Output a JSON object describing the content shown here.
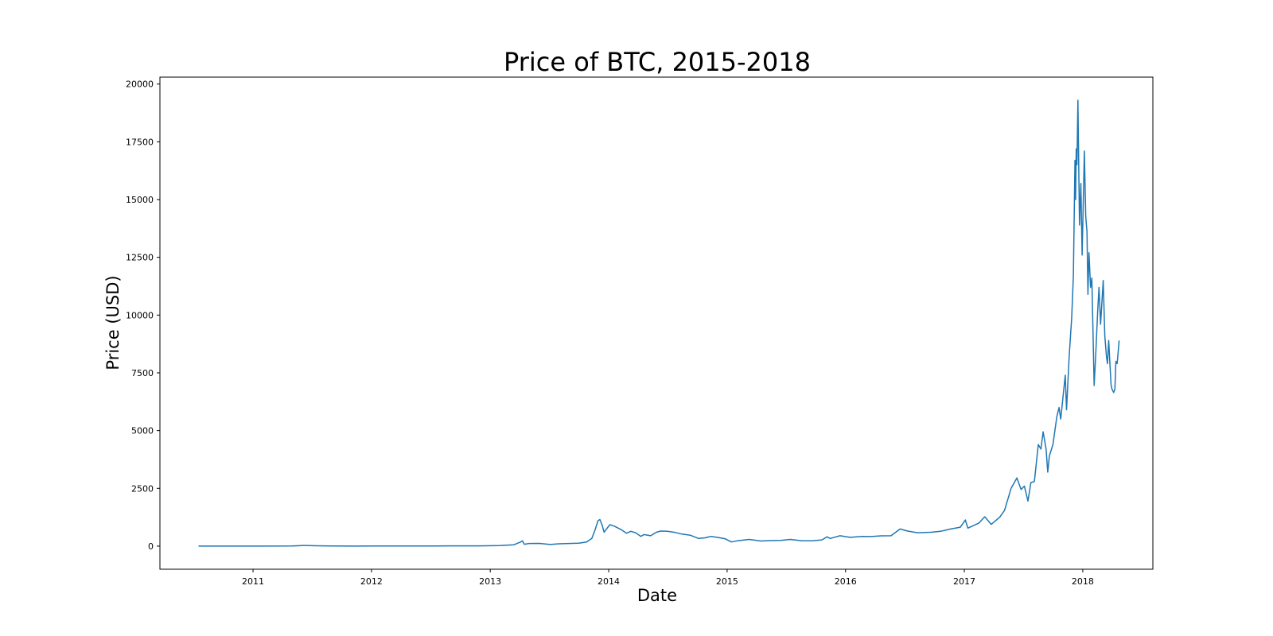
{
  "chart_data": {
    "type": "line",
    "title": "Price of BTC, 2015-2018",
    "xlabel": "Date",
    "ylabel": "Price (USD)",
    "x_axis_type": "date",
    "xlim": [
      "2010-03-20",
      "2018-08-05"
    ],
    "ylim": [
      -1000,
      20300
    ],
    "grid": false,
    "line_color": "#1f77b4",
    "x_ticks": [
      {
        "date": "2011-01-01",
        "label": "2011"
      },
      {
        "date": "2012-01-01",
        "label": "2012"
      },
      {
        "date": "2013-01-01",
        "label": "2013"
      },
      {
        "date": "2014-01-01",
        "label": "2014"
      },
      {
        "date": "2015-01-01",
        "label": "2015"
      },
      {
        "date": "2016-01-01",
        "label": "2016"
      },
      {
        "date": "2017-01-01",
        "label": "2017"
      },
      {
        "date": "2018-01-01",
        "label": "2018"
      }
    ],
    "y_ticks": [
      {
        "value": 0,
        "label": "0"
      },
      {
        "value": 2500,
        "label": "2500"
      },
      {
        "value": 5000,
        "label": "5000"
      },
      {
        "value": 7500,
        "label": "7500"
      },
      {
        "value": 10000,
        "label": "10000"
      },
      {
        "value": 12500,
        "label": "12500"
      },
      {
        "value": 15000,
        "label": "15000"
      },
      {
        "value": 17500,
        "label": "17500"
      },
      {
        "value": 20000,
        "label": "20000"
      }
    ],
    "series": [
      {
        "points": [
          [
            "2010-07-17",
            0.05
          ],
          [
            "2010-11-01",
            0.3
          ],
          [
            "2011-02-01",
            0.9
          ],
          [
            "2011-05-01",
            4
          ],
          [
            "2011-06-08",
            30
          ],
          [
            "2011-07-15",
            14
          ],
          [
            "2011-09-01",
            8
          ],
          [
            "2011-11-15",
            2.5
          ],
          [
            "2012-01-15",
            6
          ],
          [
            "2012-04-15",
            5
          ],
          [
            "2012-07-15",
            8
          ],
          [
            "2012-09-01",
            11
          ],
          [
            "2012-12-01",
            13
          ],
          [
            "2013-02-01",
            25
          ],
          [
            "2013-03-15",
            60
          ],
          [
            "2013-04-05",
            180
          ],
          [
            "2013-04-10",
            230
          ],
          [
            "2013-04-16",
            80
          ],
          [
            "2013-05-01",
            115
          ],
          [
            "2013-06-01",
            120
          ],
          [
            "2013-07-05",
            70
          ],
          [
            "2013-08-01",
            100
          ],
          [
            "2013-10-01",
            130
          ],
          [
            "2013-10-25",
            180
          ],
          [
            "2013-11-10",
            330
          ],
          [
            "2013-11-20",
            700
          ],
          [
            "2013-11-29",
            1100
          ],
          [
            "2013-12-05",
            1150
          ],
          [
            "2013-12-12",
            900
          ],
          [
            "2013-12-18",
            600
          ],
          [
            "2013-12-24",
            720
          ],
          [
            "2014-01-05",
            930
          ],
          [
            "2014-01-20",
            850
          ],
          [
            "2014-02-10",
            700
          ],
          [
            "2014-02-25",
            560
          ],
          [
            "2014-03-10",
            640
          ],
          [
            "2014-03-25",
            580
          ],
          [
            "2014-04-10",
            420
          ],
          [
            "2014-04-20",
            500
          ],
          [
            "2014-05-10",
            450
          ],
          [
            "2014-05-28",
            600
          ],
          [
            "2014-06-10",
            650
          ],
          [
            "2014-07-01",
            640
          ],
          [
            "2014-07-25",
            590
          ],
          [
            "2014-08-15",
            520
          ],
          [
            "2014-09-10",
            470
          ],
          [
            "2014-10-05",
            330
          ],
          [
            "2014-10-25",
            360
          ],
          [
            "2014-11-12",
            420
          ],
          [
            "2014-12-01",
            380
          ],
          [
            "2014-12-25",
            320
          ],
          [
            "2015-01-14",
            180
          ],
          [
            "2015-02-01",
            230
          ],
          [
            "2015-03-10",
            290
          ],
          [
            "2015-04-15",
            220
          ],
          [
            "2015-05-15",
            240
          ],
          [
            "2015-06-15",
            245
          ],
          [
            "2015-07-15",
            290
          ],
          [
            "2015-08-20",
            230
          ],
          [
            "2015-09-20",
            230
          ],
          [
            "2015-10-20",
            270
          ],
          [
            "2015-11-05",
            400
          ],
          [
            "2015-11-15",
            330
          ],
          [
            "2015-12-15",
            450
          ],
          [
            "2016-01-15",
            380
          ],
          [
            "2016-02-20",
            420
          ],
          [
            "2016-03-20",
            415
          ],
          [
            "2016-04-20",
            445
          ],
          [
            "2016-05-20",
            450
          ],
          [
            "2016-06-17",
            740
          ],
          [
            "2016-07-10",
            650
          ],
          [
            "2016-08-10",
            580
          ],
          [
            "2016-09-20",
            600
          ],
          [
            "2016-10-20",
            640
          ],
          [
            "2016-11-20",
            740
          ],
          [
            "2016-12-20",
            820
          ],
          [
            "2017-01-04",
            1130
          ],
          [
            "2017-01-12",
            780
          ],
          [
            "2017-02-15",
            1000
          ],
          [
            "2017-03-05",
            1270
          ],
          [
            "2017-03-25",
            940
          ],
          [
            "2017-04-20",
            1250
          ],
          [
            "2017-05-05",
            1550
          ],
          [
            "2017-05-25",
            2500
          ],
          [
            "2017-06-12",
            2950
          ],
          [
            "2017-06-25",
            2450
          ],
          [
            "2017-07-05",
            2600
          ],
          [
            "2017-07-16",
            1950
          ],
          [
            "2017-07-25",
            2750
          ],
          [
            "2017-08-05",
            2800
          ],
          [
            "2017-08-17",
            4400
          ],
          [
            "2017-08-25",
            4200
          ],
          [
            "2017-09-01",
            4950
          ],
          [
            "2017-09-10",
            4200
          ],
          [
            "2017-09-15",
            3200
          ],
          [
            "2017-09-20",
            3900
          ],
          [
            "2017-10-01",
            4400
          ],
          [
            "2017-10-13",
            5600
          ],
          [
            "2017-10-20",
            6000
          ],
          [
            "2017-10-25",
            5500
          ],
          [
            "2017-11-08",
            7400
          ],
          [
            "2017-11-12",
            5900
          ],
          [
            "2017-11-20",
            8200
          ],
          [
            "2017-11-28",
            9900
          ],
          [
            "2017-12-03",
            11700
          ],
          [
            "2017-12-08",
            16700
          ],
          [
            "2017-12-10",
            15000
          ],
          [
            "2017-12-12",
            17200
          ],
          [
            "2017-12-14",
            16500
          ],
          [
            "2017-12-17",
            19300
          ],
          [
            "2017-12-20",
            16000
          ],
          [
            "2017-12-22",
            13900
          ],
          [
            "2017-12-26",
            15700
          ],
          [
            "2017-12-30",
            12600
          ],
          [
            "2018-01-06",
            17100
          ],
          [
            "2018-01-10",
            14300
          ],
          [
            "2018-01-14",
            13600
          ],
          [
            "2018-01-17",
            10900
          ],
          [
            "2018-01-20",
            12700
          ],
          [
            "2018-01-25",
            11200
          ],
          [
            "2018-01-29",
            11600
          ],
          [
            "2018-02-02",
            8900
          ],
          [
            "2018-02-05",
            6950
          ],
          [
            "2018-02-10",
            8300
          ],
          [
            "2018-02-16",
            10200
          ],
          [
            "2018-02-20",
            11200
          ],
          [
            "2018-02-25",
            9600
          ],
          [
            "2018-03-05",
            11500
          ],
          [
            "2018-03-10",
            9100
          ],
          [
            "2018-03-15",
            8200
          ],
          [
            "2018-03-18",
            7900
          ],
          [
            "2018-03-22",
            8900
          ],
          [
            "2018-03-29",
            7000
          ],
          [
            "2018-04-01",
            6800
          ],
          [
            "2018-04-06",
            6650
          ],
          [
            "2018-04-10",
            6800
          ],
          [
            "2018-04-13",
            8000
          ],
          [
            "2018-04-17",
            7900
          ],
          [
            "2018-04-20",
            8400
          ],
          [
            "2018-04-23",
            8900
          ]
        ]
      }
    ]
  }
}
